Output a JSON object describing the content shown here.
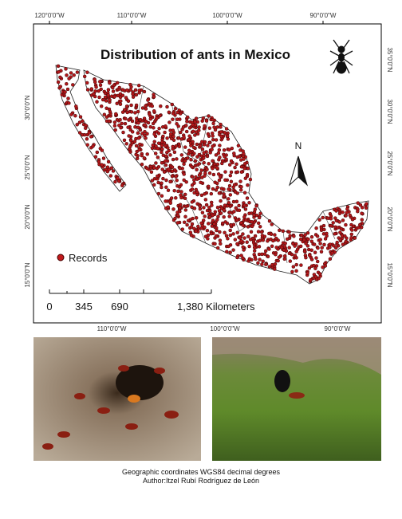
{
  "map": {
    "title": "Distribution of ants in Mexico",
    "top_labels": [
      "120°0'0\"W",
      "110°0'0\"W",
      "100°0'0\"W",
      "90°0'0\"W"
    ],
    "bottom_labels": [
      "110°0'0\"W",
      "100°0'0\"W",
      "90°0'0\"W"
    ],
    "left_labels": [
      "30°0'0\"N",
      "25°0'0\"N",
      "20°0'0\"N",
      "15°0'0\"N"
    ],
    "right_labels": [
      "35°0'0\"N",
      "30°0'0\"N",
      "25°0'0\"N",
      "20°0'0\"N",
      "15°0'0\"N"
    ],
    "north": "N",
    "legend": "Records",
    "scale_labels": [
      "0",
      "345",
      "690",
      "1,380 Kilometers"
    ]
  },
  "caption": [
    "Geographic coordinates WGS84 decimal degrees",
    "Author:Itzel Rubí Rodríguez de León"
  ]
}
